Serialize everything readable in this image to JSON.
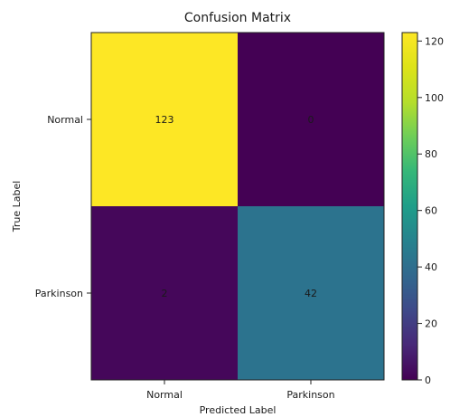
{
  "chart_data": {
    "type": "heatmap",
    "title": "Confusion Matrix",
    "xlabel": "Predicted Label",
    "ylabel": "True Label",
    "x_categories": [
      "Normal",
      "Parkinson"
    ],
    "y_categories": [
      "Normal",
      "Parkinson"
    ],
    "values": [
      [
        123,
        0
      ],
      [
        2,
        42
      ]
    ],
    "colormap": "viridis",
    "colorbar": {
      "range": [
        0,
        123
      ],
      "ticks": [
        0,
        20,
        40,
        60,
        80,
        100,
        120
      ]
    },
    "grid": false
  }
}
